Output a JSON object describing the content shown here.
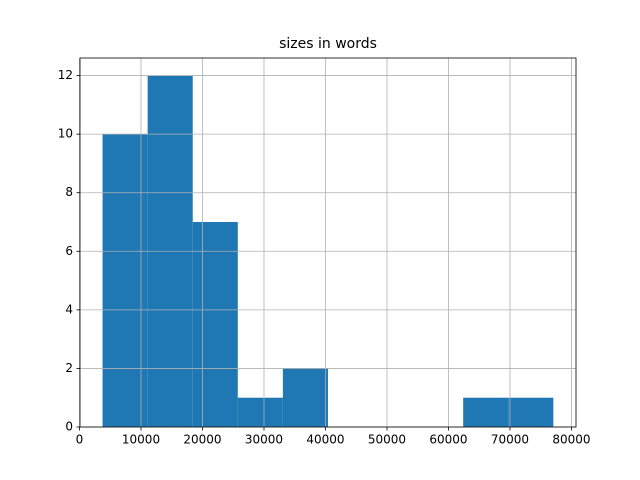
{
  "chart_data": {
    "type": "histogram",
    "title": "sizes in words",
    "bins": [
      3750,
      11080,
      18410,
      25740,
      33070,
      40400,
      47730,
      55060,
      62390,
      69720,
      77050
    ],
    "values": [
      10,
      12,
      7,
      1,
      2,
      0,
      0,
      0,
      1,
      1
    ],
    "color": "#1f77b4",
    "xlim": [
      81,
      80733
    ],
    "xticks": [
      0,
      10000,
      20000,
      30000,
      40000,
      50000,
      60000,
      70000,
      80000
    ],
    "ylim": [
      0,
      12.6
    ],
    "yticks": [
      0,
      2,
      4,
      6,
      8,
      10,
      12
    ],
    "grid": true
  }
}
